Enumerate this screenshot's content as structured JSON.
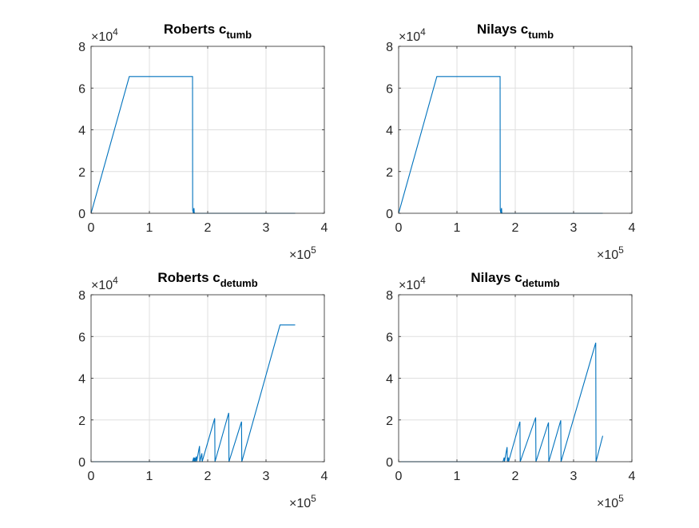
{
  "figure": {
    "colors": {
      "line": "#0072BD",
      "grid": "#dfdfdf",
      "axis": "#262626",
      "text": "#262626"
    }
  },
  "chart_data": [
    {
      "type": "line",
      "title_main": "Roberts c",
      "title_sub": "tumb",
      "xlim": [
        0,
        400000
      ],
      "ylim": [
        0,
        80000
      ],
      "xticks": [
        0,
        100000,
        200000,
        300000,
        400000
      ],
      "xtick_labels": [
        "0",
        "1",
        "2",
        "3",
        "4"
      ],
      "yticks": [
        0,
        20000,
        40000,
        60000,
        80000
      ],
      "ytick_labels": [
        "0",
        "2",
        "4",
        "6",
        "8"
      ],
      "x_exponent": "5",
      "y_exponent": "4",
      "multiplier_base": "×10",
      "grid": true,
      "x": [
        0,
        65536,
        174000,
        174200,
        175500,
        176000,
        176500,
        177000,
        178000,
        181000,
        350000
      ],
      "y": [
        0,
        65536,
        65536,
        1500,
        0,
        2000,
        2500,
        0,
        0,
        0,
        0
      ]
    },
    {
      "type": "line",
      "title_main": "Nilays c",
      "title_sub": "tumb",
      "xlim": [
        0,
        400000
      ],
      "ylim": [
        0,
        80000
      ],
      "xticks": [
        0,
        100000,
        200000,
        300000,
        400000
      ],
      "xtick_labels": [
        "0",
        "1",
        "2",
        "3",
        "4"
      ],
      "yticks": [
        0,
        20000,
        40000,
        60000,
        80000
      ],
      "ytick_labels": [
        "0",
        "2",
        "4",
        "6",
        "8"
      ],
      "x_exponent": "5",
      "y_exponent": "4",
      "multiplier_base": "×10",
      "grid": true,
      "x": [
        0,
        65536,
        174000,
        174200,
        175500,
        176000,
        176500,
        177000,
        178000,
        181000,
        350000
      ],
      "y": [
        0,
        65536,
        65536,
        1500,
        0,
        2000,
        2500,
        0,
        0,
        0,
        0
      ]
    },
    {
      "type": "line",
      "title_main": "Roberts c",
      "title_sub": "detumb",
      "xlim": [
        0,
        400000
      ],
      "ylim": [
        0,
        80000
      ],
      "xticks": [
        0,
        100000,
        200000,
        300000,
        400000
      ],
      "xtick_labels": [
        "0",
        "1",
        "2",
        "3",
        "4"
      ],
      "yticks": [
        0,
        20000,
        40000,
        60000,
        80000
      ],
      "ytick_labels": [
        "0",
        "2",
        "4",
        "6",
        "8"
      ],
      "x_exponent": "5",
      "y_exponent": "4",
      "multiplier_base": "×10",
      "grid": true,
      "x": [
        0,
        174000,
        176000,
        176500,
        178000,
        178500,
        180500,
        181000,
        186000,
        186500,
        190000,
        190500,
        212000,
        212500,
        236000,
        236500,
        258000,
        258500,
        324000,
        350000
      ],
      "y": [
        0,
        0,
        2000,
        0,
        2000,
        0,
        2500,
        0,
        7500,
        0,
        4000,
        0,
        20800,
        0,
        23400,
        0,
        19200,
        0,
        65536,
        65536
      ]
    },
    {
      "type": "line",
      "title_main": "Nilays c",
      "title_sub": "detumb",
      "xlim": [
        0,
        400000
      ],
      "ylim": [
        0,
        80000
      ],
      "xticks": [
        0,
        100000,
        200000,
        300000,
        400000
      ],
      "xtick_labels": [
        "0",
        "1",
        "2",
        "3",
        "4"
      ],
      "yticks": [
        0,
        20000,
        40000,
        60000,
        80000
      ],
      "ytick_labels": [
        "0",
        "2",
        "4",
        "6",
        "8"
      ],
      "x_exponent": "5",
      "y_exponent": "4",
      "multiplier_base": "×10",
      "grid": true,
      "x": [
        0,
        179000,
        181000,
        181500,
        186000,
        186500,
        188000,
        188500,
        208000,
        208500,
        235000,
        235500,
        257000,
        257500,
        278000,
        278500,
        338000,
        338500,
        350000
      ],
      "y": [
        0,
        0,
        2000,
        0,
        7000,
        0,
        2000,
        0,
        19200,
        0,
        21200,
        0,
        18800,
        0,
        19800,
        0,
        57000,
        0,
        12400
      ]
    }
  ]
}
